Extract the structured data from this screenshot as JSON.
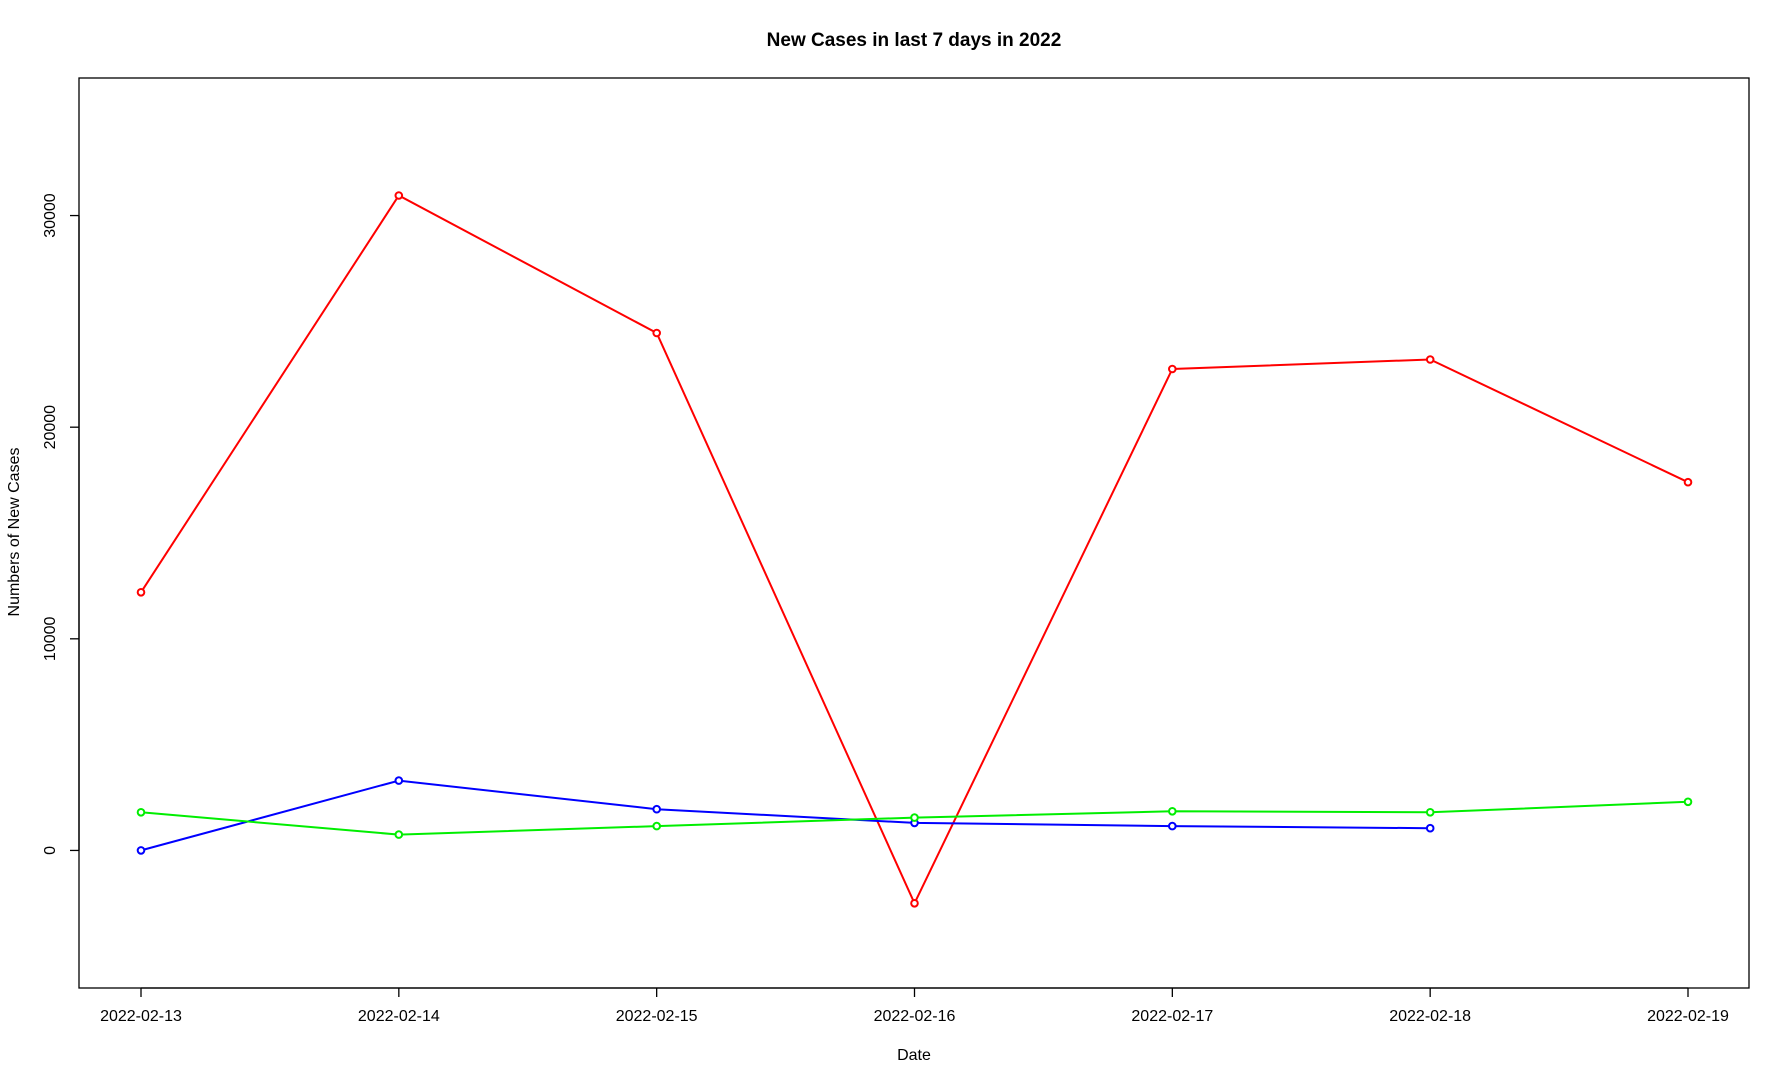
{
  "chart_data": {
    "type": "line",
    "title": "New Cases in last 7 days in 2022",
    "xlabel": "Date",
    "ylabel": "Numbers of New Cases",
    "x": [
      "2022-02-13",
      "2022-02-14",
      "2022-02-15",
      "2022-02-16",
      "2022-02-17",
      "2022-02-18",
      "2022-02-19"
    ],
    "yticks": [
      0,
      10000,
      20000,
      30000
    ],
    "ylim": [
      -6500,
      36500
    ],
    "grid": false,
    "legend": "none",
    "series": [
      {
        "color": "#ff0000",
        "values": [
          12200,
          30950,
          24450,
          -2500,
          22750,
          23200,
          17400
        ]
      },
      {
        "color": "#0000ff",
        "values": [
          0,
          3300,
          1950,
          1300,
          1150,
          1050,
          null
        ]
      },
      {
        "color": "#00ee00",
        "values": [
          1800,
          750,
          1150,
          1550,
          1850,
          1800,
          2300
        ]
      }
    ]
  }
}
